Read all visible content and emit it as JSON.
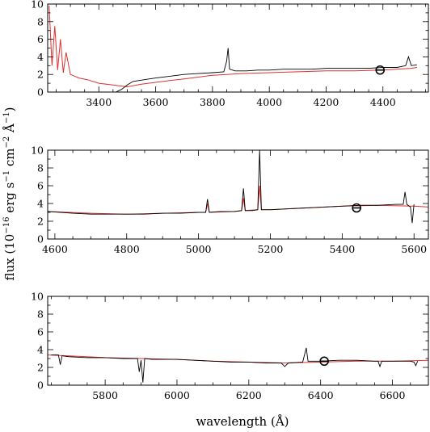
{
  "figure": {
    "ylabel": {
      "prefix": "flux (10",
      "e1": "−16",
      "t1": " erg s",
      "e2": "−1",
      "t2": " cm",
      "e3": "−2",
      "t3": " Å",
      "e4": "−1",
      "suffix": ")"
    },
    "xlabel": "wavelength (Å)",
    "colors": {
      "observed": "#000000",
      "model": "#e03030",
      "axes": "#000000"
    }
  },
  "chart_data": [
    {
      "type": "line",
      "panel": "top",
      "xlim": [
        3220,
        4560
      ],
      "ylim": [
        0,
        10
      ],
      "xticks_major": [
        3400,
        3600,
        3800,
        4000,
        4200,
        4400
      ],
      "xtick_labels": [
        "3400",
        "3600",
        "3800",
        "4000",
        "4200",
        "4400"
      ],
      "yticks_major": [
        0,
        2,
        4,
        6,
        8,
        10
      ],
      "ytick_labels": [
        "0",
        "2",
        "4",
        "6",
        "8",
        "10"
      ],
      "series": [
        {
          "role": "observed",
          "color": "#000000",
          "x": [
            3260,
            3300,
            3340,
            3380,
            3420,
            3460,
            3480,
            3500,
            3520,
            3560,
            3600,
            3650,
            3700,
            3750,
            3800,
            3840,
            3850,
            3855,
            3860,
            3880,
            3920,
            3960,
            4000,
            4050,
            4100,
            4150,
            4200,
            4250,
            4300,
            4350,
            4400,
            4450,
            4480,
            4490,
            4500,
            4520
          ],
          "y": [
            0.0,
            0.0,
            0.0,
            0.0,
            0.0,
            0.0,
            0.3,
            0.8,
            1.2,
            1.4,
            1.6,
            1.8,
            2.0,
            2.1,
            2.2,
            2.3,
            3.5,
            5.0,
            2.6,
            2.4,
            2.4,
            2.5,
            2.5,
            2.6,
            2.6,
            2.6,
            2.7,
            2.7,
            2.7,
            2.7,
            2.8,
            2.8,
            3.0,
            4.0,
            3.0,
            3.1
          ]
        },
        {
          "role": "model",
          "color": "#e03030",
          "x": [
            3225,
            3235,
            3245,
            3255,
            3265,
            3275,
            3285,
            3300,
            3330,
            3360,
            3400,
            3450,
            3500,
            3550,
            3600,
            3650,
            3700,
            3750,
            3800,
            3850,
            3900,
            4000,
            4100,
            4200,
            4300,
            4400,
            4500,
            4520
          ],
          "y": [
            9.8,
            3.0,
            7.5,
            2.5,
            6.0,
            2.2,
            4.5,
            2.0,
            1.6,
            1.4,
            1.0,
            0.8,
            0.6,
            0.9,
            1.1,
            1.3,
            1.5,
            1.7,
            1.9,
            2.0,
            2.1,
            2.2,
            2.3,
            2.4,
            2.4,
            2.5,
            2.7,
            2.8
          ]
        }
      ],
      "marker": {
        "x": 4390,
        "y": 2.5
      }
    },
    {
      "type": "line",
      "panel": "middle",
      "xlim": [
        4580,
        5640
      ],
      "ylim": [
        0,
        10
      ],
      "xticks_major": [
        4600,
        4800,
        5000,
        5200,
        5400,
        5600
      ],
      "xtick_labels": [
        "4600",
        "4800",
        "5000",
        "5200",
        "5400",
        "5600"
      ],
      "yticks_major": [
        0,
        2,
        4,
        6,
        8,
        10
      ],
      "ytick_labels": [
        "0",
        "2",
        "4",
        "6",
        "8",
        "10"
      ],
      "series": [
        {
          "role": "observed",
          "color": "#000000",
          "x": [
            4580,
            4650,
            4700,
            4750,
            4800,
            4850,
            4900,
            4950,
            5000,
            5020,
            5025,
            5030,
            5060,
            5100,
            5120,
            5125,
            5130,
            5150,
            5165,
            5170,
            5175,
            5185,
            5200,
            5250,
            5300,
            5350,
            5400,
            5450,
            5500,
            5550,
            5570,
            5575,
            5580,
            5590,
            5595,
            5600
          ],
          "y": [
            3.1,
            2.9,
            2.8,
            2.8,
            2.8,
            2.8,
            2.9,
            2.9,
            3.0,
            3.0,
            4.5,
            3.0,
            3.1,
            3.1,
            3.2,
            5.7,
            3.2,
            3.2,
            3.3,
            10.0,
            3.3,
            3.3,
            3.3,
            3.4,
            3.5,
            3.6,
            3.7,
            3.8,
            3.8,
            3.9,
            3.9,
            5.3,
            3.9,
            3.6,
            1.8,
            3.9
          ]
        },
        {
          "role": "model",
          "color": "#e03030",
          "x": [
            4580,
            4700,
            4800,
            4900,
            5000,
            5020,
            5025,
            5030,
            5100,
            5120,
            5125,
            5130,
            5165,
            5170,
            5175,
            5200,
            5300,
            5400,
            5500,
            5600,
            5640
          ],
          "y": [
            3.1,
            2.9,
            2.8,
            2.9,
            3.0,
            3.0,
            4.0,
            3.0,
            3.1,
            3.2,
            4.6,
            3.2,
            3.3,
            6.0,
            3.3,
            3.3,
            3.5,
            3.7,
            3.8,
            3.7,
            3.6
          ]
        }
      ],
      "marker": {
        "x": 5440,
        "y": 3.5
      }
    },
    {
      "type": "line",
      "panel": "bottom",
      "xlim": [
        5640,
        6700
      ],
      "ylim": [
        0,
        10
      ],
      "xticks_major": [
        5800,
        6000,
        6200,
        6400,
        6600
      ],
      "xtick_labels": [
        "5800",
        "6000",
        "6200",
        "6400",
        "6600"
      ],
      "yticks_major": [
        0,
        2,
        4,
        6,
        8,
        10
      ],
      "ytick_labels": [
        "0",
        "2",
        "4",
        "6",
        "8",
        "10"
      ],
      "series": [
        {
          "role": "observed",
          "color": "#000000",
          "x": [
            5650,
            5670,
            5675,
            5680,
            5700,
            5750,
            5800,
            5850,
            5890,
            5895,
            5900,
            5905,
            5910,
            5930,
            5950,
            6000,
            6050,
            6100,
            6150,
            6200,
            6250,
            6290,
            6300,
            6310,
            6350,
            6360,
            6365,
            6370,
            6400,
            6450,
            6500,
            6550,
            6560,
            6565,
            6570,
            6600,
            6650,
            6660,
            6665,
            6670
          ],
          "y": [
            3.4,
            3.4,
            2.3,
            3.3,
            3.2,
            3.1,
            3.1,
            3.0,
            3.0,
            1.5,
            2.8,
            0.3,
            3.0,
            2.9,
            2.9,
            2.9,
            2.8,
            2.7,
            2.6,
            2.6,
            2.5,
            2.5,
            2.1,
            2.5,
            2.6,
            4.2,
            2.7,
            2.7,
            2.7,
            2.8,
            2.8,
            2.7,
            2.7,
            2.1,
            2.7,
            2.7,
            2.7,
            2.6,
            2.2,
            2.7
          ]
        },
        {
          "role": "model",
          "color": "#e03030",
          "x": [
            5640,
            5700,
            5800,
            5900,
            6000,
            6100,
            6200,
            6300,
            6400,
            6500,
            6600,
            6700
          ],
          "y": [
            3.4,
            3.3,
            3.1,
            3.0,
            2.9,
            2.7,
            2.6,
            2.5,
            2.6,
            2.7,
            2.7,
            2.8
          ]
        }
      ],
      "marker": {
        "x": 6410,
        "y": 2.7
      }
    }
  ]
}
